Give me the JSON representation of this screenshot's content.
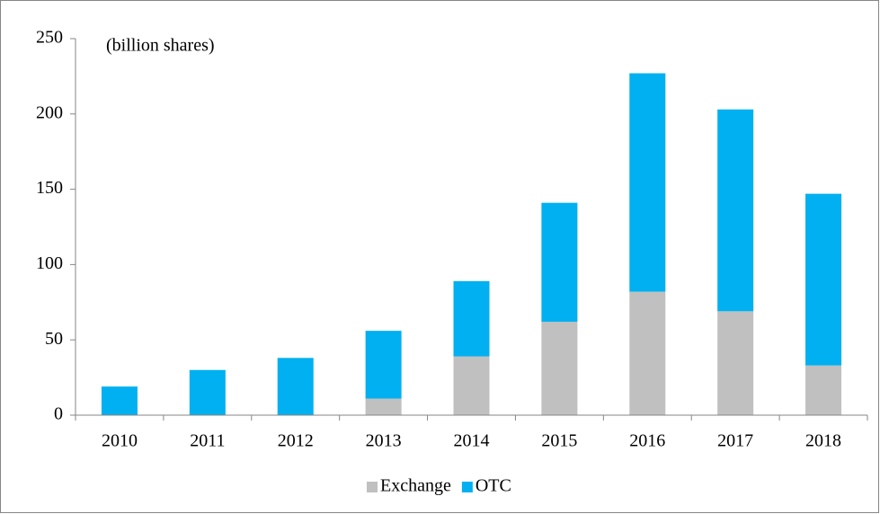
{
  "chart_data": {
    "type": "stacked_bar",
    "annotation": "(billion shares)",
    "categories": [
      "2010",
      "2011",
      "2012",
      "2013",
      "2014",
      "2015",
      "2016",
      "2017",
      "2018"
    ],
    "series": [
      {
        "name": "Exchange",
        "color": "#c0c0c0",
        "values": [
          0,
          0,
          0,
          11,
          39,
          62,
          82,
          69,
          33
        ]
      },
      {
        "name": "OTC",
        "color": "#00b0f0",
        "values": [
          19,
          30,
          38,
          45,
          50,
          79,
          145,
          134,
          114
        ]
      }
    ],
    "ylim": [
      0,
      250
    ],
    "yticks": [
      0,
      50,
      100,
      150,
      200,
      250
    ],
    "grid": false,
    "legend": "bottom"
  }
}
